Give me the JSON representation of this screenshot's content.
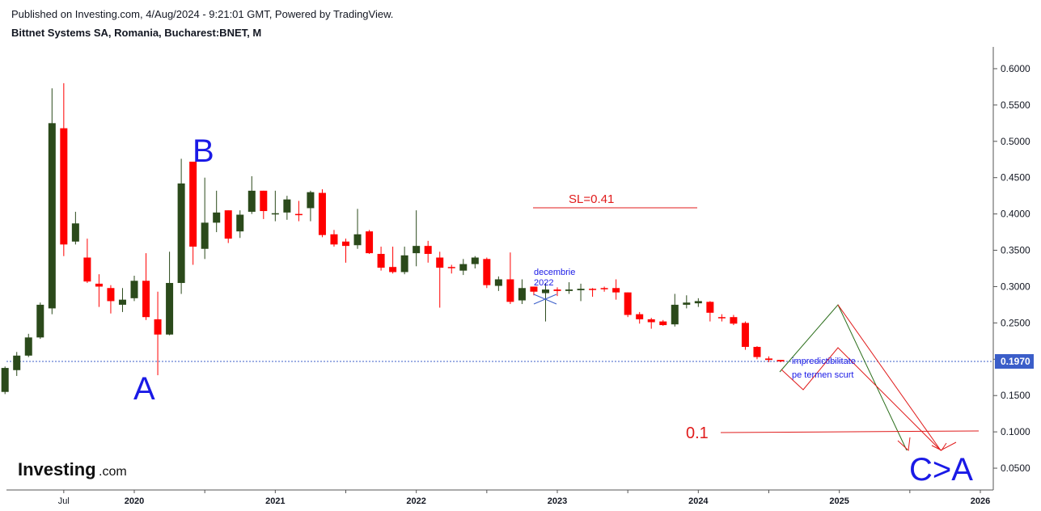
{
  "header": {
    "published": "Published on Investing.com, 4/Aug/2024 - 9:21:01 GMT, Powered by TradingView.",
    "symbol": "Bittnet Systems SA, Romania, Bucharest:BNET, M"
  },
  "logo": {
    "main": "Investing",
    "suffix": ".com"
  },
  "colors": {
    "up": "#2b4a1b",
    "down": "#ff0000",
    "annotation_blue": "#1a1ae6",
    "annotation_red": "#e01b1b",
    "price_line": "#3b5ec9",
    "price_badge": "#3b5ec9"
  },
  "chart_data": {
    "type": "candlestick",
    "interval": "M",
    "ylim": [
      0.02,
      0.63
    ],
    "y_ticks": [
      "0.0500",
      "0.1000",
      "0.1500",
      "0.2000",
      "0.2500",
      "0.3000",
      "0.3500",
      "0.4000",
      "0.4500",
      "0.5000",
      "0.5500",
      "0.6000"
    ],
    "x_labels": [
      {
        "label": "Jul",
        "date": "2019-07",
        "bold": false
      },
      {
        "label": "2020",
        "date": "2020-01",
        "bold": true
      },
      {
        "label": "2021",
        "date": "2021-01",
        "bold": true
      },
      {
        "label": "2022",
        "date": "2022-01",
        "bold": true
      },
      {
        "label": "2023",
        "date": "2023-01",
        "bold": true
      },
      {
        "label": "2024",
        "date": "2024-01",
        "bold": true
      },
      {
        "label": "2025",
        "date": "2025-01",
        "bold": true
      },
      {
        "label": "2026",
        "date": "2026-01",
        "bold": true
      }
    ],
    "last_price": "0.1970",
    "candles": [
      {
        "date": "2019-02",
        "o": 0.155,
        "h": 0.19,
        "l": 0.152,
        "c": 0.188
      },
      {
        "date": "2019-03",
        "o": 0.185,
        "h": 0.21,
        "l": 0.177,
        "c": 0.205
      },
      {
        "date": "2019-04",
        "o": 0.205,
        "h": 0.235,
        "l": 0.203,
        "c": 0.23
      },
      {
        "date": "2019-05",
        "o": 0.23,
        "h": 0.278,
        "l": 0.228,
        "c": 0.275
      },
      {
        "date": "2019-06",
        "o": 0.27,
        "h": 0.573,
        "l": 0.262,
        "c": 0.525
      },
      {
        "date": "2019-07",
        "o": 0.518,
        "h": 0.58,
        "l": 0.342,
        "c": 0.358
      },
      {
        "date": "2019-08",
        "o": 0.362,
        "h": 0.403,
        "l": 0.358,
        "c": 0.387
      },
      {
        "date": "2019-09",
        "o": 0.34,
        "h": 0.366,
        "l": 0.305,
        "c": 0.307
      },
      {
        "date": "2019-10",
        "o": 0.304,
        "h": 0.317,
        "l": 0.272,
        "c": 0.3
      },
      {
        "date": "2019-11",
        "o": 0.298,
        "h": 0.302,
        "l": 0.263,
        "c": 0.28
      },
      {
        "date": "2019-12",
        "o": 0.275,
        "h": 0.298,
        "l": 0.265,
        "c": 0.282
      },
      {
        "date": "2020-01",
        "o": 0.284,
        "h": 0.315,
        "l": 0.28,
        "c": 0.308
      },
      {
        "date": "2020-02",
        "o": 0.308,
        "h": 0.346,
        "l": 0.254,
        "c": 0.258
      },
      {
        "date": "2020-03",
        "o": 0.255,
        "h": 0.293,
        "l": 0.178,
        "c": 0.234
      },
      {
        "date": "2020-04",
        "o": 0.234,
        "h": 0.348,
        "l": 0.233,
        "c": 0.305
      },
      {
        "date": "2020-05",
        "o": 0.305,
        "h": 0.476,
        "l": 0.29,
        "c": 0.442
      },
      {
        "date": "2020-06",
        "o": 0.472,
        "h": 0.472,
        "l": 0.33,
        "c": 0.355
      },
      {
        "date": "2020-07",
        "o": 0.352,
        "h": 0.45,
        "l": 0.338,
        "c": 0.388
      },
      {
        "date": "2020-08",
        "o": 0.388,
        "h": 0.432,
        "l": 0.375,
        "c": 0.402
      },
      {
        "date": "2020-09",
        "o": 0.405,
        "h": 0.405,
        "l": 0.36,
        "c": 0.366
      },
      {
        "date": "2020-10",
        "o": 0.376,
        "h": 0.405,
        "l": 0.367,
        "c": 0.399
      },
      {
        "date": "2020-11",
        "o": 0.403,
        "h": 0.452,
        "l": 0.4,
        "c": 0.432
      },
      {
        "date": "2020-12",
        "o": 0.432,
        "h": 0.432,
        "l": 0.393,
        "c": 0.404
      },
      {
        "date": "2021-01",
        "o": 0.4,
        "h": 0.432,
        "l": 0.39,
        "c": 0.401
      },
      {
        "date": "2021-02",
        "o": 0.402,
        "h": 0.425,
        "l": 0.392,
        "c": 0.42
      },
      {
        "date": "2021-03",
        "o": 0.4,
        "h": 0.418,
        "l": 0.39,
        "c": 0.399
      },
      {
        "date": "2021-04",
        "o": 0.408,
        "h": 0.432,
        "l": 0.39,
        "c": 0.43
      },
      {
        "date": "2021-05",
        "o": 0.429,
        "h": 0.434,
        "l": 0.368,
        "c": 0.371
      },
      {
        "date": "2021-06",
        "o": 0.372,
        "h": 0.378,
        "l": 0.355,
        "c": 0.358
      },
      {
        "date": "2021-07",
        "o": 0.362,
        "h": 0.366,
        "l": 0.333,
        "c": 0.356
      },
      {
        "date": "2021-08",
        "o": 0.357,
        "h": 0.407,
        "l": 0.352,
        "c": 0.372
      },
      {
        "date": "2021-09",
        "o": 0.376,
        "h": 0.378,
        "l": 0.345,
        "c": 0.346
      },
      {
        "date": "2021-10",
        "o": 0.345,
        "h": 0.355,
        "l": 0.322,
        "c": 0.326
      },
      {
        "date": "2021-11",
        "o": 0.327,
        "h": 0.355,
        "l": 0.318,
        "c": 0.32
      },
      {
        "date": "2021-12",
        "o": 0.32,
        "h": 0.355,
        "l": 0.317,
        "c": 0.343
      },
      {
        "date": "2022-01",
        "o": 0.346,
        "h": 0.405,
        "l": 0.328,
        "c": 0.356
      },
      {
        "date": "2022-02",
        "o": 0.356,
        "h": 0.363,
        "l": 0.333,
        "c": 0.345
      },
      {
        "date": "2022-03",
        "o": 0.34,
        "h": 0.348,
        "l": 0.271,
        "c": 0.326
      },
      {
        "date": "2022-04",
        "o": 0.327,
        "h": 0.33,
        "l": 0.318,
        "c": 0.326
      },
      {
        "date": "2022-05",
        "o": 0.322,
        "h": 0.338,
        "l": 0.316,
        "c": 0.331
      },
      {
        "date": "2022-06",
        "o": 0.331,
        "h": 0.342,
        "l": 0.325,
        "c": 0.34
      },
      {
        "date": "2022-07",
        "o": 0.338,
        "h": 0.34,
        "l": 0.298,
        "c": 0.302
      },
      {
        "date": "2022-08",
        "o": 0.301,
        "h": 0.314,
        "l": 0.294,
        "c": 0.31
      },
      {
        "date": "2022-09",
        "o": 0.31,
        "h": 0.347,
        "l": 0.276,
        "c": 0.279
      },
      {
        "date": "2022-10",
        "o": 0.281,
        "h": 0.31,
        "l": 0.276,
        "c": 0.298
      },
      {
        "date": "2022-11",
        "o": 0.3,
        "h": 0.3,
        "l": 0.288,
        "c": 0.293
      },
      {
        "date": "2022-12",
        "o": 0.291,
        "h": 0.305,
        "l": 0.252,
        "c": 0.296
      },
      {
        "date": "2023-01",
        "o": 0.296,
        "h": 0.299,
        "l": 0.287,
        "c": 0.294
      },
      {
        "date": "2023-02",
        "o": 0.294,
        "h": 0.306,
        "l": 0.29,
        "c": 0.296
      },
      {
        "date": "2023-03",
        "o": 0.295,
        "h": 0.304,
        "l": 0.28,
        "c": 0.297
      },
      {
        "date": "2023-04",
        "o": 0.297,
        "h": 0.298,
        "l": 0.286,
        "c": 0.296
      },
      {
        "date": "2023-05",
        "o": 0.298,
        "h": 0.3,
        "l": 0.293,
        "c": 0.297
      },
      {
        "date": "2023-06",
        "o": 0.298,
        "h": 0.31,
        "l": 0.282,
        "c": 0.292
      },
      {
        "date": "2023-07",
        "o": 0.292,
        "h": 0.292,
        "l": 0.258,
        "c": 0.261
      },
      {
        "date": "2023-08",
        "o": 0.262,
        "h": 0.265,
        "l": 0.249,
        "c": 0.255
      },
      {
        "date": "2023-09",
        "o": 0.255,
        "h": 0.257,
        "l": 0.242,
        "c": 0.251
      },
      {
        "date": "2023-10",
        "o": 0.252,
        "h": 0.254,
        "l": 0.246,
        "c": 0.247
      },
      {
        "date": "2023-11",
        "o": 0.248,
        "h": 0.29,
        "l": 0.245,
        "c": 0.275
      },
      {
        "date": "2023-12",
        "o": 0.275,
        "h": 0.288,
        "l": 0.27,
        "c": 0.278
      },
      {
        "date": "2024-01",
        "o": 0.277,
        "h": 0.284,
        "l": 0.272,
        "c": 0.28
      },
      {
        "date": "2024-02",
        "o": 0.279,
        "h": 0.28,
        "l": 0.252,
        "c": 0.264
      },
      {
        "date": "2024-03",
        "o": 0.258,
        "h": 0.262,
        "l": 0.252,
        "c": 0.257
      },
      {
        "date": "2024-04",
        "o": 0.258,
        "h": 0.261,
        "l": 0.247,
        "c": 0.249
      },
      {
        "date": "2024-05",
        "o": 0.25,
        "h": 0.252,
        "l": 0.213,
        "c": 0.217
      },
      {
        "date": "2024-06",
        "o": 0.217,
        "h": 0.218,
        "l": 0.2,
        "c": 0.203
      },
      {
        "date": "2024-07",
        "o": 0.201,
        "h": 0.204,
        "l": 0.196,
        "c": 0.199
      },
      {
        "date": "2024-08",
        "o": 0.199,
        "h": 0.199,
        "l": 0.196,
        "c": 0.197
      }
    ]
  },
  "annotations": {
    "label_a": "A",
    "label_b": "B",
    "sl_label": "SL=0.41",
    "decembrie_line1": "decembrie",
    "decembrie_line2": "2022",
    "impred_line1": "impredictibilitate",
    "impred_line2": "pe termen scurt",
    "target_label": "0.1",
    "ca_label": "C>A"
  }
}
